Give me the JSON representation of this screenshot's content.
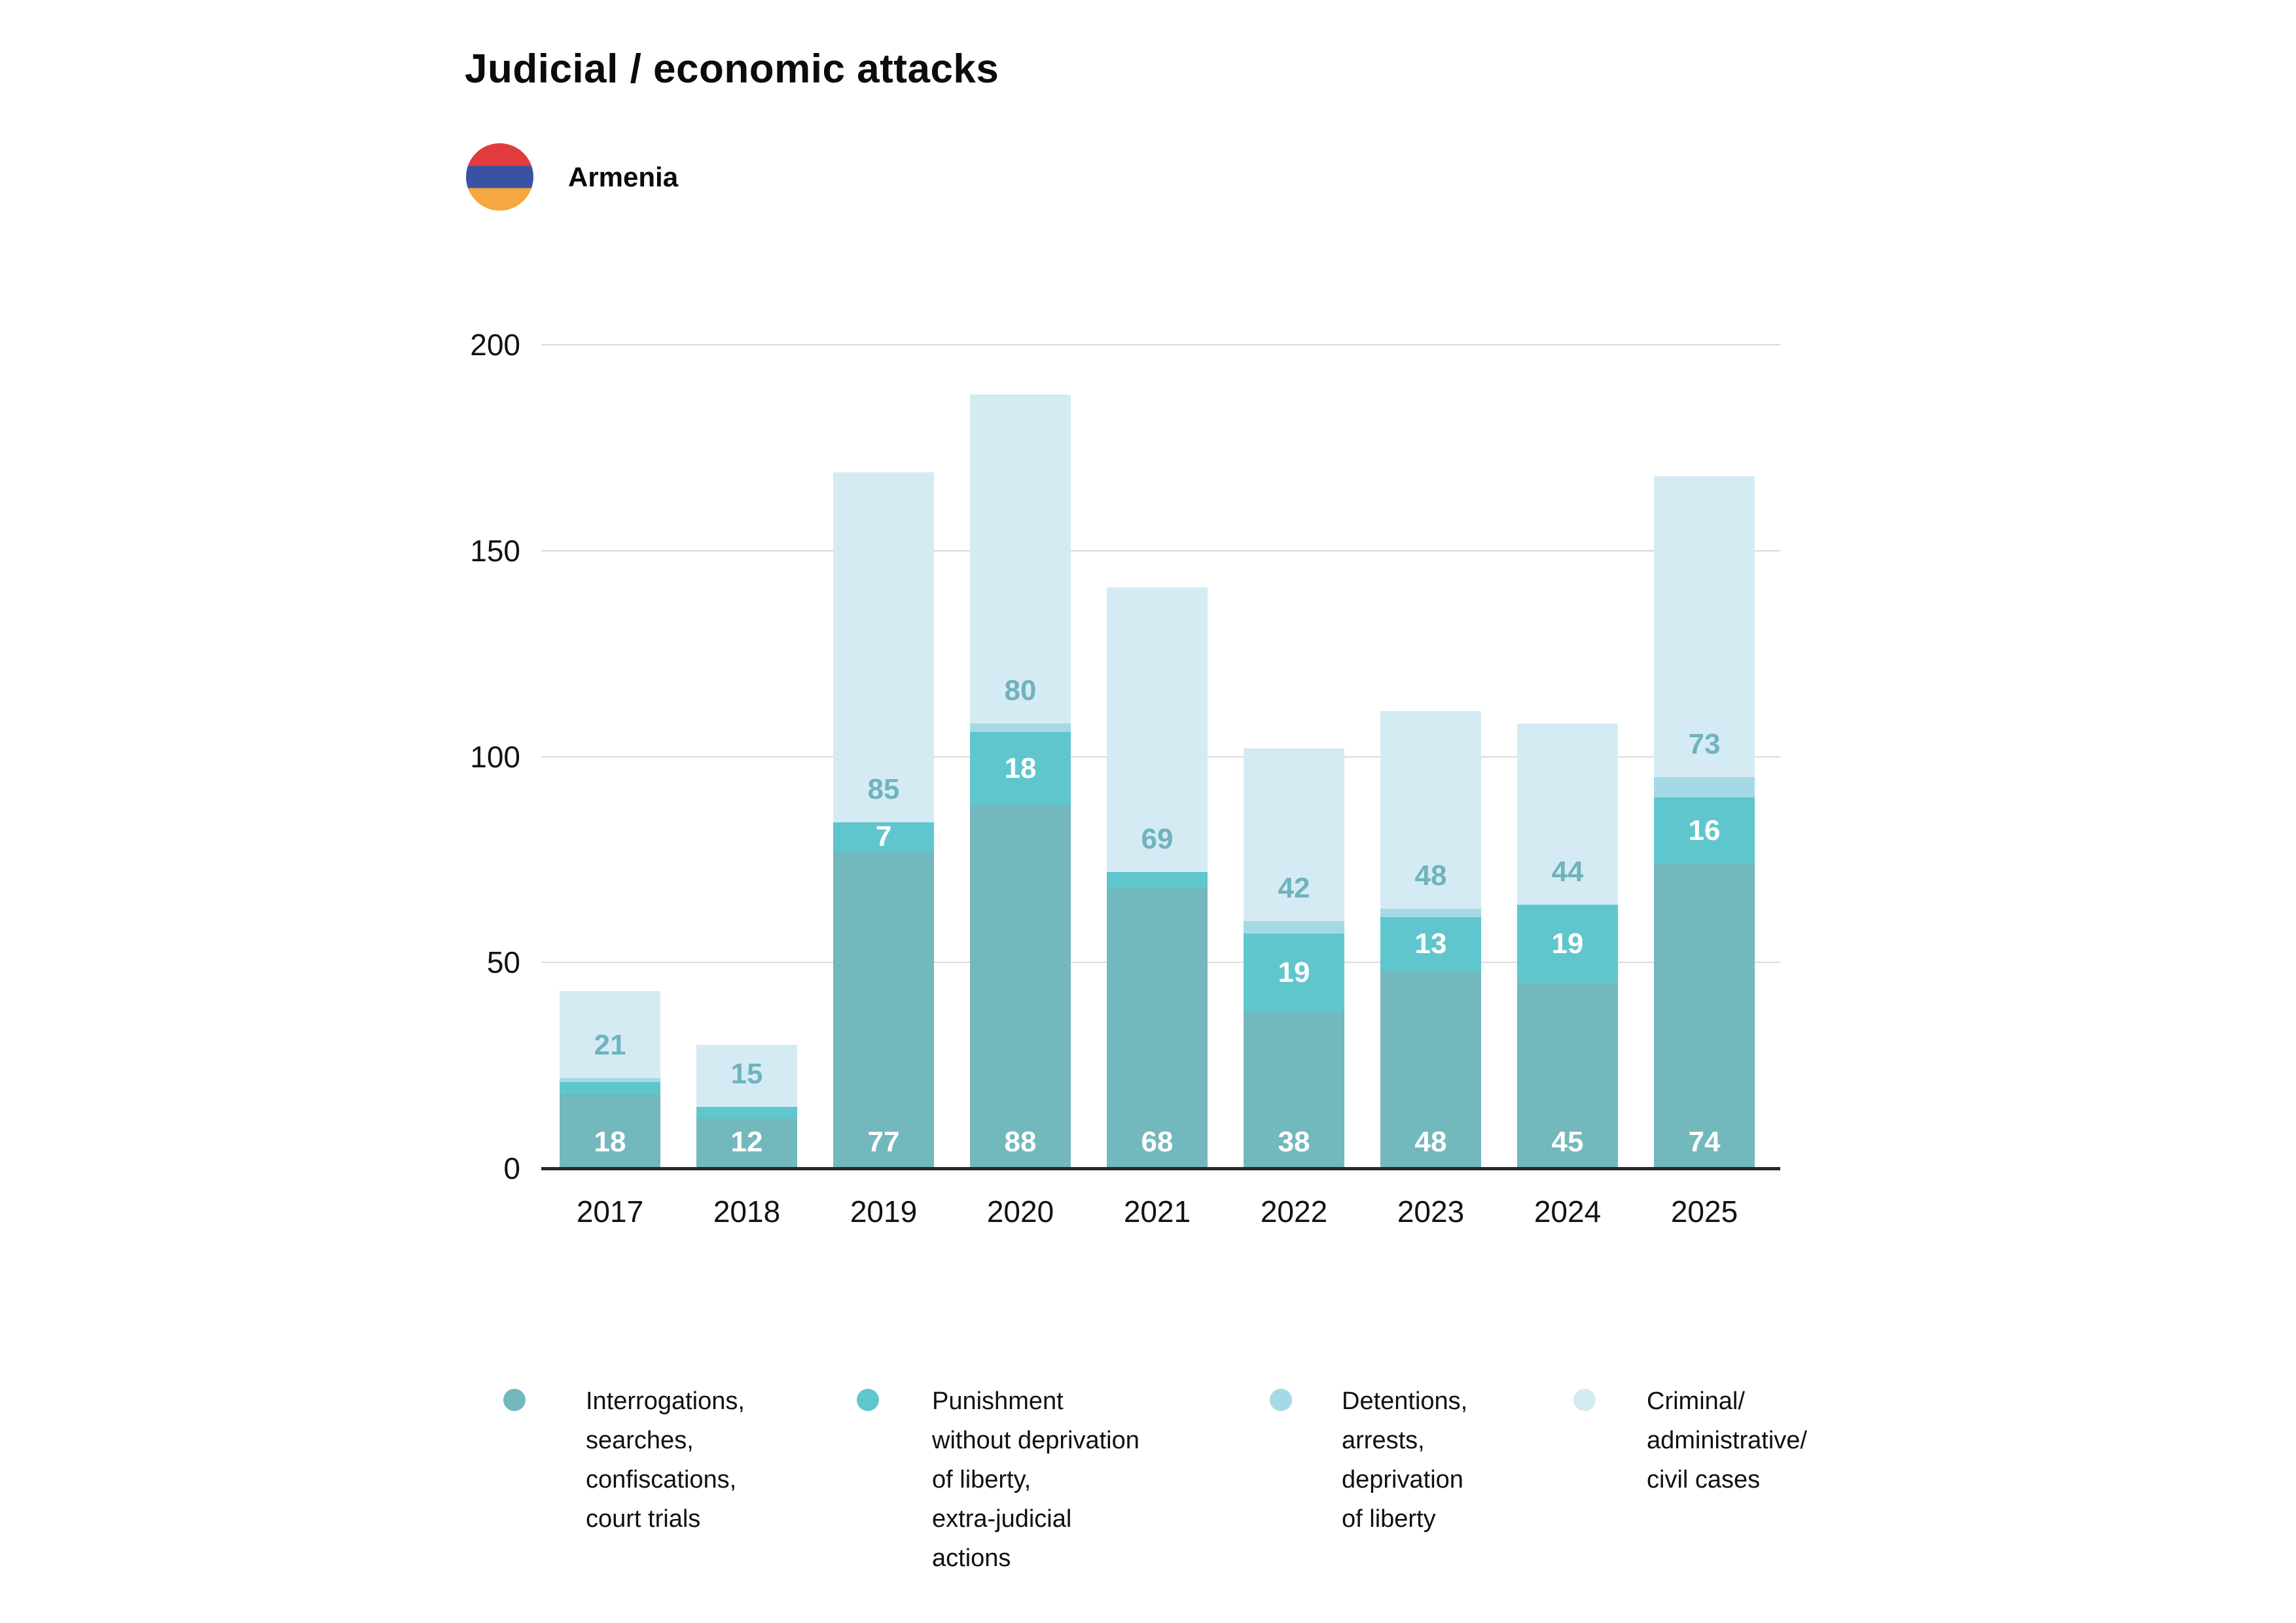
{
  "header": {
    "title": "Judicial / economic attacks",
    "country": "Armenia",
    "flag_colors": {
      "red": "#e23b3e",
      "blue": "#3a52a4",
      "orange": "#f5a83f"
    }
  },
  "chart_data": {
    "type": "bar",
    "stacked": true,
    "title": "Judicial / economic attacks",
    "xlabel": "",
    "ylabel": "",
    "ylim": [
      0,
      200
    ],
    "yticks": [
      "0",
      "50",
      "100",
      "150",
      "200"
    ],
    "grid": true,
    "grid_color": "#d9d9d9",
    "baseline_color": "#2f2527",
    "legend_position": "bottom",
    "categories": [
      "2017",
      "2018",
      "2019",
      "2020",
      "2021",
      "2022",
      "2023",
      "2024",
      "2025"
    ],
    "series": [
      {
        "name": "Interrogations, searches, confiscations, court trials",
        "color": "#72b8bc",
        "label_color": "#ffffff",
        "values": [
          18,
          12,
          77,
          88,
          68,
          38,
          48,
          45,
          74
        ],
        "labels": [
          "18",
          "12",
          "77",
          "88",
          "68",
          "38",
          "48",
          "45",
          "74"
        ]
      },
      {
        "name": "Punishment without deprivation of liberty, extra-judicial actions",
        "color": "#60c6ce",
        "label_color": "#ffffff",
        "values": [
          3,
          3,
          7,
          18,
          4,
          19,
          13,
          19,
          16
        ],
        "labels": [
          null,
          null,
          "7",
          "18",
          null,
          "19",
          "13",
          "19",
          "16"
        ]
      },
      {
        "name": "Detentions, arrests, deprivation of liberty",
        "color": "#a6d9e6",
        "label_color": "#6fb3be",
        "values": [
          1,
          0,
          0,
          2,
          0,
          3,
          2,
          0,
          5
        ],
        "labels": [
          null,
          null,
          null,
          null,
          null,
          null,
          null,
          null,
          null
        ]
      },
      {
        "name": "Criminal/administrative/civil cases",
        "color": "#d5ebf4",
        "label_color": "#6fb3be",
        "values": [
          21,
          15,
          85,
          80,
          69,
          42,
          48,
          44,
          73
        ],
        "labels": [
          "21",
          "15",
          "85",
          "80",
          "69",
          "42",
          "48",
          "44",
          "73"
        ]
      }
    ]
  },
  "legend": {
    "items": [
      {
        "label": "Interrogations,\nsearches,\nconfiscations,\ncourt trials",
        "color": "#72b8bc"
      },
      {
        "label": "Punishment\nwithout deprivation\nof liberty,\nextra-judicial\nactions",
        "color": "#60c6ce"
      },
      {
        "label": "Detentions,\narrests,\ndeprivation\nof liberty",
        "color": "#a6d9e6"
      },
      {
        "label": "Criminal/\nadministrative/\ncivil cases",
        "color": "#d5ebf4"
      }
    ]
  }
}
